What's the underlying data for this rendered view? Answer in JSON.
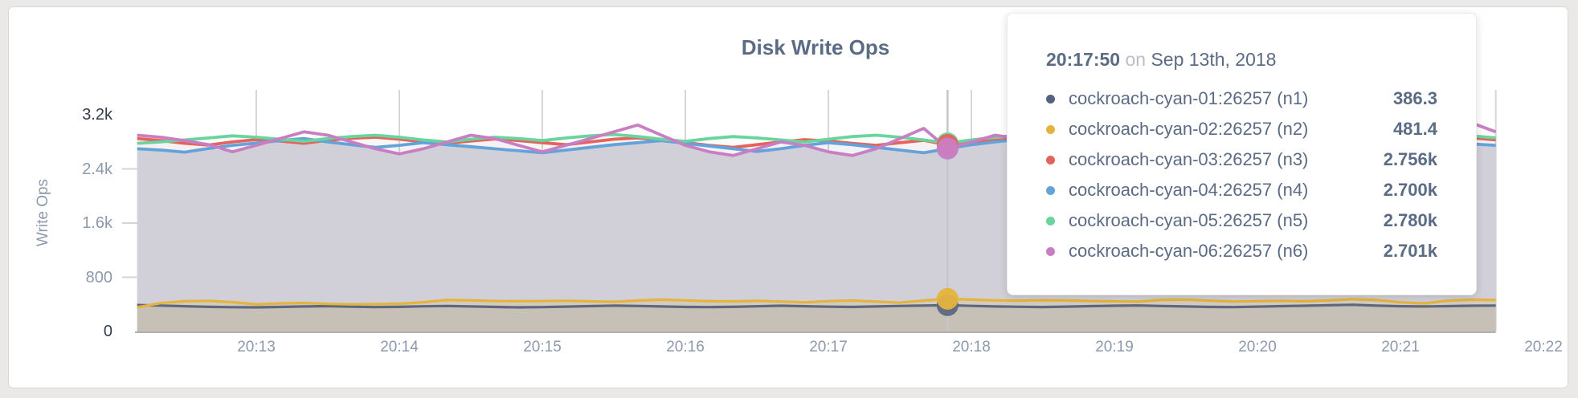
{
  "chart": {
    "title": "Disk Write Ops",
    "ylabel": "Write Ops",
    "y_ticks": [
      "3.2k",
      "2.4k",
      "1.6k",
      "800",
      "0"
    ],
    "x_ticks": [
      "20:13",
      "20:14",
      "20:15",
      "20:16",
      "20:17",
      "20:18",
      "20:19",
      "20:20",
      "20:21",
      "20:22"
    ]
  },
  "tooltip": {
    "time": "20:17:50",
    "on_word": "on",
    "date": "Sep 13th, 2018",
    "rows": [
      {
        "label": "cockroach-cyan-01:26257 (n1)",
        "value": "386.3",
        "color": "#55617e"
      },
      {
        "label": "cockroach-cyan-02:26257 (n2)",
        "value": "481.4",
        "color": "#e5b43e"
      },
      {
        "label": "cockroach-cyan-03:26257 (n3)",
        "value": "2.756k",
        "color": "#e4635c"
      },
      {
        "label": "cockroach-cyan-04:26257 (n4)",
        "value": "2.700k",
        "color": "#64a3da"
      },
      {
        "label": "cockroach-cyan-05:26257 (n5)",
        "value": "2.780k",
        "color": "#6ad49c"
      },
      {
        "label": "cockroach-cyan-06:26257 (n6)",
        "value": "2.701k",
        "color": "#c97ec4"
      }
    ]
  },
  "chart_data": {
    "type": "line",
    "title": "Disk Write Ops",
    "ylabel": "Write Ops",
    "ylim": [
      0,
      3200
    ],
    "y_axis_ticks": [
      3200,
      2400,
      1600,
      800,
      0
    ],
    "x_axis_tick_labels": [
      "20:13",
      "20:14",
      "20:15",
      "20:16",
      "20:17",
      "20:18",
      "20:19",
      "20:20",
      "20:21",
      "20:22"
    ],
    "x_unit": "seconds after 20:12:00 on Sep 13th, 2018",
    "x_start": 10,
    "x_step": 10,
    "grid": true,
    "legend_position": "none (hover tooltip overlay shown instead)",
    "hover": {
      "t": 350,
      "time": "20:17:50",
      "date": "Sep 13th, 2018",
      "values": {
        "n1": 386.3,
        "n2": 481.4,
        "n3": 2756,
        "n4": 2700,
        "n5": 2780,
        "n6": 2701
      }
    },
    "series": [
      {
        "name": "cockroach-cyan-01:26257 (n1)",
        "color": "#5d687f",
        "fill_opacity": 0.1,
        "hover_value": 386.3,
        "values": [
          390,
          382,
          372,
          363,
          358,
          356,
          361,
          368,
          373,
          366,
          359,
          363,
          371,
          376,
          368,
          361,
          356,
          359,
          366,
          373,
          381,
          376,
          368,
          362,
          359,
          363,
          371,
          379,
          372,
          365,
          361,
          369,
          376,
          382,
          386.3,
          377,
          369,
          364,
          360,
          366,
          373,
          379,
          383,
          375,
          368,
          362,
          359,
          366,
          373,
          379,
          386,
          393,
          381,
          372,
          368,
          373,
          379,
          382
        ]
      },
      {
        "name": "cockroach-cyan-02:26257 (n2)",
        "color": "#e5b43e",
        "fill_opacity": 0.16,
        "hover_value": 481.4,
        "values": [
          355,
          418,
          446,
          452,
          431,
          401,
          414,
          421,
          406,
          400,
          403,
          409,
          431,
          464,
          459,
          449,
          446,
          448,
          453,
          444,
          437,
          456,
          469,
          459,
          447,
          444,
          451,
          441,
          429,
          447,
          456,
          441,
          424,
          456,
          481.4,
          469,
          459,
          454,
          461,
          457,
          449,
          444,
          439,
          467,
          471,
          454,
          441,
          447,
          451,
          444,
          459,
          477,
          464,
          429,
          414,
          454,
          469,
          463
        ]
      },
      {
        "name": "cockroach-cyan-03:26257 (n3)",
        "color": "#e4635c",
        "fill_opacity": 0.04,
        "hover_value": 2756,
        "values": [
          2848,
          2818,
          2778,
          2752,
          2798,
          2832,
          2812,
          2778,
          2822,
          2852,
          2868,
          2838,
          2798,
          2778,
          2812,
          2842,
          2818,
          2788,
          2758,
          2798,
          2838,
          2858,
          2828,
          2788,
          2748,
          2718,
          2758,
          2798,
          2832,
          2812,
          2778,
          2748,
          2788,
          2822,
          2756,
          2792,
          2822,
          2852,
          2832,
          2798,
          2768,
          2798,
          2832,
          2812,
          2778,
          2748,
          2778,
          2812,
          2842,
          2862,
          2832,
          2798,
          2768,
          2798,
          2832,
          2898,
          2858,
          2828
        ]
      },
      {
        "name": "cockroach-cyan-04:26257 (n4)",
        "color": "#64a3da",
        "fill_opacity": 0.04,
        "hover_value": 2700,
        "values": [
          2698,
          2678,
          2648,
          2702,
          2748,
          2782,
          2818,
          2848,
          2798,
          2758,
          2718,
          2748,
          2788,
          2758,
          2728,
          2698,
          2668,
          2638,
          2678,
          2718,
          2758,
          2788,
          2818,
          2778,
          2738,
          2698,
          2658,
          2698,
          2748,
          2788,
          2758,
          2718,
          2678,
          2638,
          2700,
          2758,
          2798,
          2838,
          2808,
          2768,
          2728,
          2758,
          2798,
          2828,
          2788,
          2748,
          2708,
          2748,
          2798,
          2838,
          2858,
          2818,
          2778,
          2738,
          2698,
          2728,
          2768,
          2748
        ]
      },
      {
        "name": "cockroach-cyan-05:26257 (n5)",
        "color": "#6ad49c",
        "fill_opacity": 0.04,
        "hover_value": 2780,
        "values": [
          2778,
          2798,
          2828,
          2858,
          2888,
          2868,
          2838,
          2808,
          2848,
          2878,
          2898,
          2868,
          2828,
          2798,
          2838,
          2868,
          2848,
          2818,
          2858,
          2888,
          2908,
          2878,
          2838,
          2808,
          2848,
          2878,
          2858,
          2828,
          2798,
          2838,
          2878,
          2898,
          2868,
          2828,
          2780,
          2828,
          2868,
          2898,
          2918,
          2878,
          2838,
          2868,
          2898,
          2868,
          2828,
          2798,
          2838,
          2878,
          2908,
          2878,
          2838,
          2798,
          2838,
          2878,
          2898,
          2928,
          2888,
          2858
        ]
      },
      {
        "name": "cockroach-cyan-06:26257 (n6)",
        "color": "#c97ec4",
        "fill_opacity": 0.04,
        "hover_value": 2701,
        "values": [
          2898,
          2868,
          2818,
          2758,
          2652,
          2748,
          2848,
          2948,
          2898,
          2798,
          2698,
          2622,
          2698,
          2798,
          2898,
          2848,
          2748,
          2652,
          2748,
          2848,
          2948,
          3048,
          2898,
          2748,
          2652,
          2598,
          2698,
          2798,
          2748,
          2652,
          2598,
          2698,
          2848,
          2998,
          2701,
          2798,
          2898,
          2848,
          2748,
          2652,
          2598,
          2698,
          2798,
          2898,
          2848,
          2748,
          2678,
          2748,
          2848,
          2948,
          2848,
          2748,
          2652,
          2598,
          2698,
          2848,
          3078,
          2948
        ]
      }
    ]
  }
}
